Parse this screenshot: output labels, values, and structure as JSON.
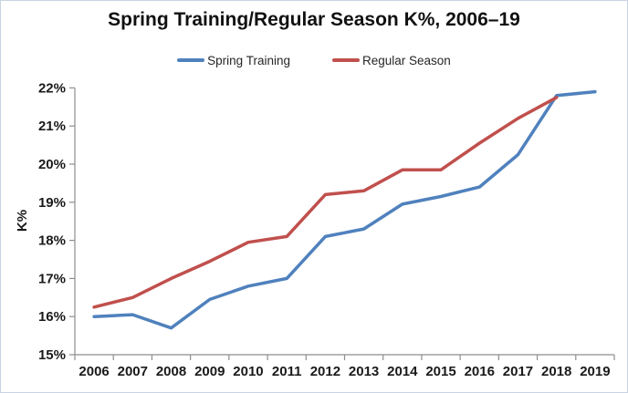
{
  "chart_data": {
    "type": "line",
    "title": "Spring Training/Regular Season K%, 2006–19",
    "xlabel": "",
    "ylabel": "K%",
    "categories": [
      "2006",
      "2007",
      "2008",
      "2009",
      "2010",
      "2011",
      "2012",
      "2013",
      "2014",
      "2015",
      "2016",
      "2017",
      "2018",
      "2019"
    ],
    "series": [
      {
        "name": "Spring Training",
        "color": "#4F81BD",
        "values": [
          16.0,
          16.05,
          15.7,
          16.45,
          16.8,
          17.0,
          18.1,
          18.3,
          18.95,
          19.15,
          19.4,
          20.25,
          21.8,
          21.9
        ]
      },
      {
        "name": "Regular Season",
        "color": "#C0504D",
        "values": [
          16.25,
          16.5,
          17.0,
          17.45,
          17.95,
          18.1,
          19.2,
          19.3,
          19.85,
          19.85,
          20.55,
          21.2,
          21.75,
          null
        ]
      }
    ],
    "ylim": [
      15,
      22
    ],
    "y_tick_step": 1,
    "y_tick_labels": [
      "15%",
      "16%",
      "17%",
      "18%",
      "19%",
      "20%",
      "21%",
      "22%"
    ],
    "grid": false,
    "legend_position": "top",
    "axis_color": "#8E8E8E",
    "text_color": "#1A1A1A"
  }
}
